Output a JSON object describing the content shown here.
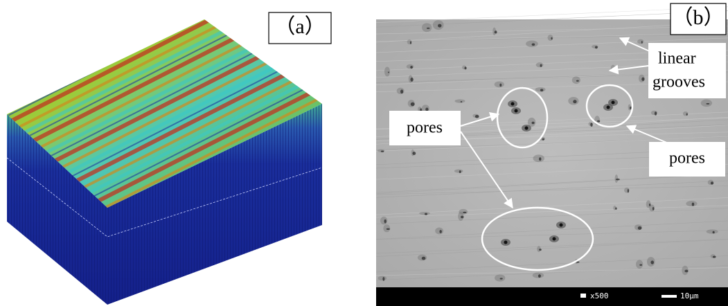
{
  "panels": [
    {
      "label": "（a）"
    },
    {
      "label": "（b）",
      "annotations": [
        {
          "lines": [
            "linear",
            "grooves"
          ]
        },
        {
          "lines": [
            "pores"
          ]
        },
        {
          "lines": [
            "pores"
          ]
        }
      ],
      "scale": {
        "magnification": "x500",
        "bar": "10μm"
      }
    }
  ]
}
